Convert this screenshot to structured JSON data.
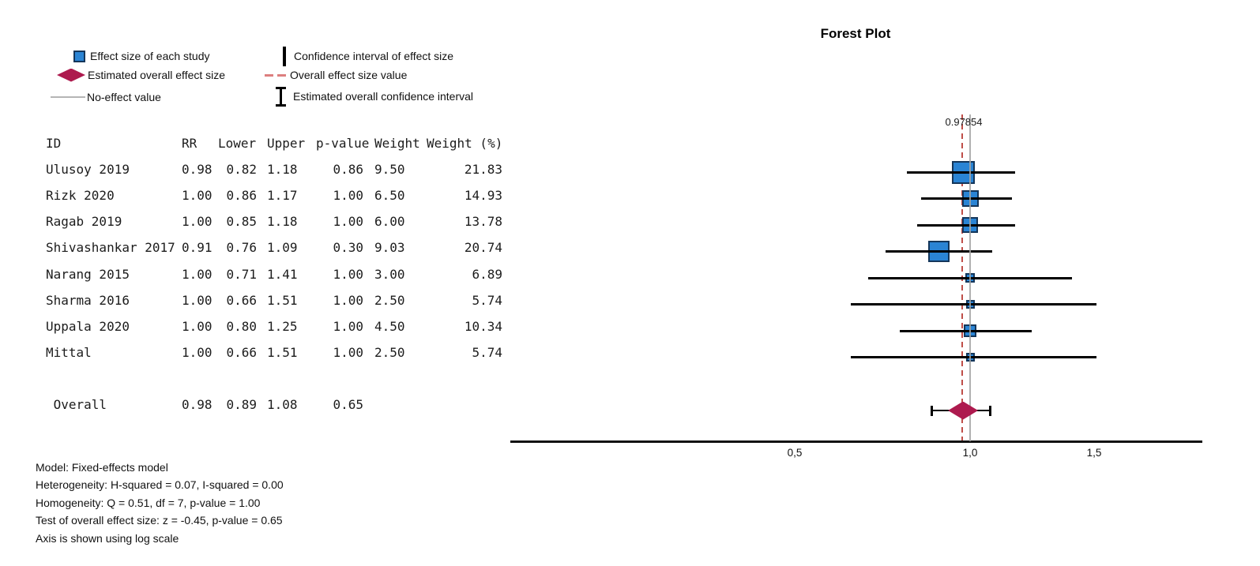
{
  "title": "Forest Plot",
  "legend": {
    "col1": [
      {
        "icon": "effect-square-icon",
        "label": "Effect size of each study"
      },
      {
        "icon": "overall-diamond-icon",
        "label": "Estimated overall effect size"
      },
      {
        "icon": "no-effect-line-icon",
        "label": "No-effect value"
      }
    ],
    "col2": [
      {
        "icon": "ci-bar-icon",
        "label": "Confidence interval of effect size"
      },
      {
        "icon": "dashed-line-icon",
        "label": "Overall effect size value"
      },
      {
        "icon": "ibeam-icon",
        "label": "Estimated overall confidence interval"
      }
    ]
  },
  "table": {
    "headers": [
      "ID",
      "RR",
      "Lower",
      "Upper",
      "p-value",
      "Weight",
      "Weight (%)"
    ]
  },
  "notes": [
    "Model: Fixed-effects model",
    "Heterogeneity: H-squared = 0.07, I-squared = 0.00",
    "Homogeneity: Q = 0.51, df = 7, p-value = 1.00",
    "Test of overall effect size: z = -0.45, p-value = 0.65",
    "Axis is shown using log scale"
  ],
  "chart_data": {
    "type": "forest",
    "title": "Forest Plot",
    "x_scale": "log",
    "x_ticks": [
      {
        "value": 0.5,
        "label": "0,5"
      },
      {
        "value": 1.0,
        "label": "1,0"
      },
      {
        "value": 1.5,
        "label": "1,5"
      }
    ],
    "no_effect_value": 1.0,
    "overall_effect_value": 0.97854,
    "overall_effect_label": "0.97854",
    "studies": [
      {
        "id": "Ulusoy 2019",
        "rr": 0.98,
        "lower": 0.82,
        "upper": 1.18,
        "p": 0.86,
        "weight": 9.5,
        "weight_pct": 21.83
      },
      {
        "id": "Rizk 2020",
        "rr": 1.0,
        "lower": 0.86,
        "upper": 1.17,
        "p": 1.0,
        "weight": 6.5,
        "weight_pct": 14.93
      },
      {
        "id": "Ragab 2019",
        "rr": 1.0,
        "lower": 0.85,
        "upper": 1.18,
        "p": 1.0,
        "weight": 6.0,
        "weight_pct": 13.78
      },
      {
        "id": "Shivashankar 2017",
        "rr": 0.91,
        "lower": 0.76,
        "upper": 1.09,
        "p": 0.3,
        "weight": 9.03,
        "weight_pct": 20.74
      },
      {
        "id": "Narang 2015",
        "rr": 1.0,
        "lower": 0.71,
        "upper": 1.41,
        "p": 1.0,
        "weight": 3.0,
        "weight_pct": 6.89
      },
      {
        "id": "Sharma 2016",
        "rr": 1.0,
        "lower": 0.66,
        "upper": 1.51,
        "p": 1.0,
        "weight": 2.5,
        "weight_pct": 5.74
      },
      {
        "id": "Uppala 2020",
        "rr": 1.0,
        "lower": 0.8,
        "upper": 1.25,
        "p": 1.0,
        "weight": 4.5,
        "weight_pct": 10.34
      },
      {
        "id": "Mittal",
        "rr": 1.0,
        "lower": 0.66,
        "upper": 1.51,
        "p": 1.0,
        "weight": 2.5,
        "weight_pct": 5.74
      }
    ],
    "overall": {
      "id": "Overall",
      "rr": 0.98,
      "lower": 0.89,
      "upper": 1.08,
      "p": 0.65
    }
  },
  "colors": {
    "effect_square": "#2a84d4",
    "effect_square_border": "#14365a",
    "overall_diamond": "#ad1a4e",
    "overall_effect_line": "#bf4e48",
    "legend_dash": "#dd7f7f",
    "no_effect_line": "#a3a3a3",
    "ci_line": "#000000"
  }
}
